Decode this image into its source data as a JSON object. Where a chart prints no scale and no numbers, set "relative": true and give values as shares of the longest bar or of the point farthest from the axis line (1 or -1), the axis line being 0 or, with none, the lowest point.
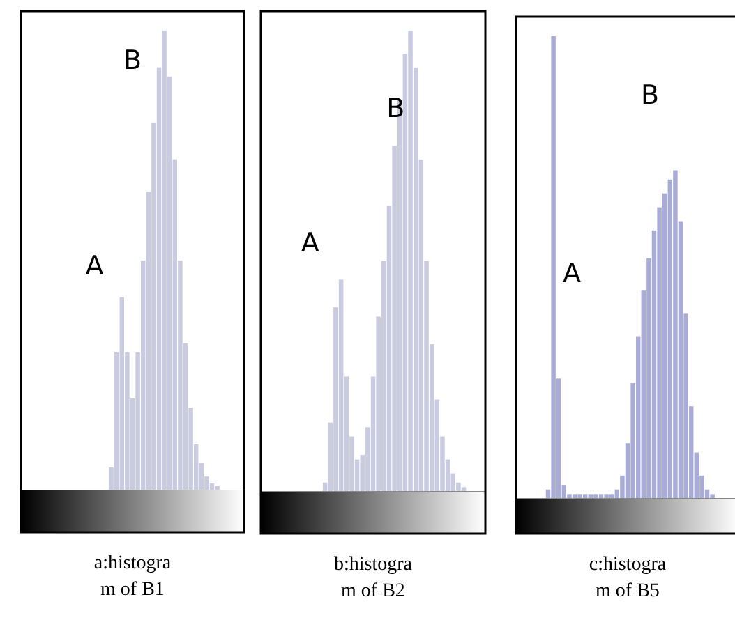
{
  "chart_data": [
    {
      "type": "bar",
      "relative": true,
      "title": "a:histogram of B1",
      "categories": [
        null,
        null,
        null,
        null,
        null,
        null,
        null,
        null,
        null,
        null,
        null,
        null,
        null,
        null,
        null,
        null,
        null,
        null,
        null,
        null,
        null
      ],
      "color": "#c9cbe0",
      "annotations": [
        "A",
        "B"
      ],
      "values": [
        0.05,
        0.3,
        0.42,
        0.3,
        0.2,
        0.3,
        0.5,
        0.65,
        0.8,
        0.92,
        1,
        0.9,
        0.72,
        0.5,
        0.32,
        0.18,
        0.1,
        0.06,
        0.03,
        0.015,
        0.01
      ]
    },
    {
      "type": "bar",
      "relative": true,
      "title": "b:histogram of B2",
      "categories": [
        null,
        null,
        null,
        null,
        null,
        null,
        null,
        null,
        null,
        null,
        null,
        null,
        null,
        null,
        null,
        null,
        null,
        null,
        null,
        null,
        null,
        null,
        null,
        null,
        null,
        null,
        null
      ],
      "color": "#c9cbe0",
      "annotations": [
        "A",
        "B"
      ],
      "values": [
        0.02,
        0.15,
        0.4,
        0.46,
        0.25,
        0.12,
        0.07,
        0.08,
        0.14,
        0.25,
        0.38,
        0.5,
        0.62,
        0.75,
        0.85,
        0.95,
        1,
        0.92,
        0.72,
        0.5,
        0.32,
        0.2,
        0.12,
        0.07,
        0.04,
        0.02,
        0.01
      ]
    },
    {
      "type": "bar",
      "relative": true,
      "title": "c:histogram of B5",
      "categories": [
        null,
        null,
        null,
        null,
        null,
        null,
        null,
        null,
        null,
        null,
        null,
        null,
        null,
        null,
        null,
        null,
        null,
        null,
        null,
        null,
        null,
        null,
        null,
        null,
        null,
        null,
        null,
        null,
        null,
        null,
        null,
        null
      ],
      "color": "#a9acd6",
      "annotations": [
        "A",
        "B"
      ],
      "values": [
        0.02,
        1,
        0.26,
        0.03,
        0.01,
        0.01,
        0.01,
        0.01,
        0.01,
        0.01,
        0.01,
        0.01,
        0.01,
        0.02,
        0.05,
        0.12,
        0.25,
        0.35,
        0.45,
        0.52,
        0.58,
        0.63,
        0.66,
        0.69,
        0.71,
        0.6,
        0.4,
        0.2,
        0.1,
        0.05,
        0.02,
        0.01
      ]
    }
  ]
}
